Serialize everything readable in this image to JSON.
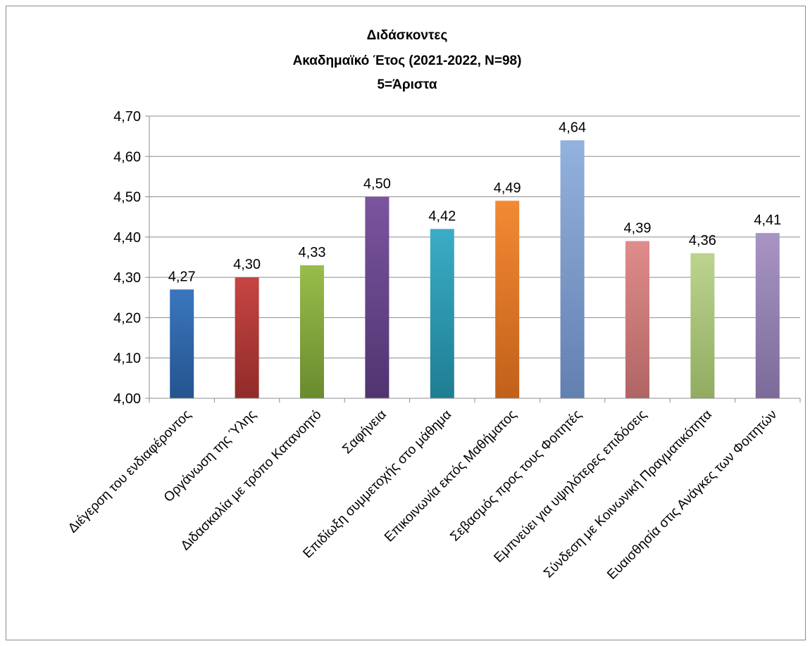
{
  "chart_data": {
    "type": "bar",
    "title_lines": [
      "Διδάσκοντες",
      "Ακαδημαϊκό Έτος (2021-2022, N=98)",
      "5=Άριστα"
    ],
    "categories": [
      "Διέγερση του ενδιαφέροντος",
      "Οργάνωση της Ύλης",
      "Διδασκαλία  με τρόπο Κατανοητό",
      "Σαφήνεια",
      "Επιδίωξη συμμετοχής στο μάθημα",
      "Επικοινωνία εκτός Μαθήματος",
      "Σεβασμός προς τους Φοιτητές",
      "Εμπνεύει για υψηλότερες επιδόσεις",
      "Σύνδεση με Κοινωνική Πραγματικότητα",
      "Ευαισθησία στις Ανάγκες των Φοιτητών"
    ],
    "values": [
      4.27,
      4.3,
      4.33,
      4.5,
      4.42,
      4.49,
      4.64,
      4.39,
      4.36,
      4.41
    ],
    "data_labels": [
      "4,27",
      "4,30",
      "4,33",
      "4,50",
      "4,42",
      "4,49",
      "4,64",
      "4,39",
      "4,36",
      "4,41"
    ],
    "bar_colors": [
      [
        "#3a76bd",
        "#25548f"
      ],
      [
        "#c64542",
        "#902b29"
      ],
      [
        "#98bd4b",
        "#6a8b2e"
      ],
      [
        "#7b559f",
        "#503470"
      ],
      [
        "#3badc6",
        "#1e7d93"
      ],
      [
        "#f28a34",
        "#c2601a"
      ],
      [
        "#93b2de",
        "#6280b0"
      ],
      [
        "#df8c8b",
        "#b06564"
      ],
      [
        "#bcd48e",
        "#91ab62"
      ],
      [
        "#a895c4",
        "#7c6a99"
      ]
    ],
    "ylim": [
      4.0,
      4.7
    ],
    "yticks": [
      4.0,
      4.1,
      4.2,
      4.3,
      4.4,
      4.5,
      4.6,
      4.7
    ],
    "ytick_labels": [
      "4,00",
      "4,10",
      "4,20",
      "4,30",
      "4,40",
      "4,50",
      "4,60",
      "4,70"
    ],
    "grid": true,
    "legend": "none",
    "gridline_color": "#8c8c8c"
  }
}
